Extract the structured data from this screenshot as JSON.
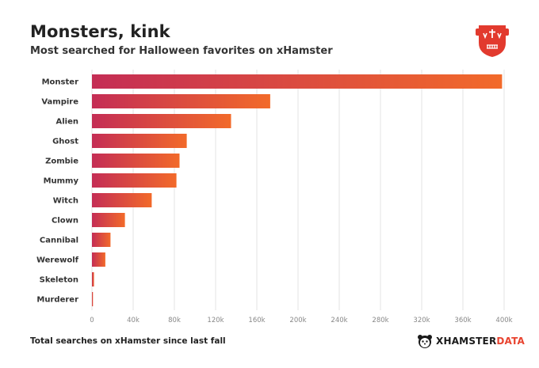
{
  "title": "Monsters, kink",
  "subtitle": "Most searched for Halloween favorites on xHamster",
  "footnote": "Total searches on xHamster since last fall",
  "brand": {
    "name": "XHAMSTER",
    "suffix": "DATA",
    "accent_color": "#e8432f"
  },
  "logo_icon": "halloween-shield-icon",
  "chart_data": {
    "type": "bar",
    "orientation": "horizontal",
    "categories": [
      "Monster",
      "Vampire",
      "Alien",
      "Ghost",
      "Zombie",
      "Mummy",
      "Witch",
      "Clown",
      "Cannibal",
      "Werewolf",
      "Skeleton",
      "Murderer"
    ],
    "values": [
      398000,
      173000,
      135000,
      92000,
      85000,
      82000,
      58000,
      32000,
      18000,
      13000,
      2000,
      1000
    ],
    "xlim": [
      0,
      400000
    ],
    "xticks": [
      0,
      40000,
      80000,
      120000,
      160000,
      200000,
      240000,
      280000,
      320000,
      360000,
      400000
    ],
    "xtick_labels": [
      "0",
      "40k",
      "80k",
      "120k",
      "160k",
      "200k",
      "240k",
      "280k",
      "320k",
      "360k",
      "400k"
    ],
    "grid": true,
    "bar_gradient": [
      "#c42d55",
      "#f26a2a"
    ]
  }
}
